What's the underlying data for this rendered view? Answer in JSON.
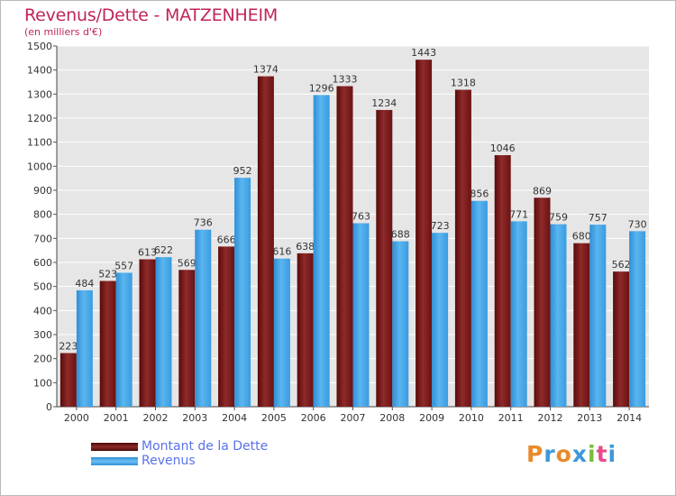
{
  "header": {
    "title": "Revenus/Dette - MATZENHEIM",
    "subtitle": "(en milliers d'€)"
  },
  "logo": {
    "text": "Proxiti",
    "colors": [
      "#e98a2b",
      "#3b98d8",
      "#e98a2b",
      "#3b98d8",
      "#7bbd3c",
      "#e84c8b",
      "#3b98d8"
    ]
  },
  "chart_data": {
    "type": "bar",
    "categories": [
      "2000",
      "2001",
      "2002",
      "2003",
      "2004",
      "2005",
      "2006",
      "2007",
      "2008",
      "2009",
      "2010",
      "2011",
      "2012",
      "2013",
      "2014"
    ],
    "series": [
      {
        "name": "Montant de la Dette",
        "color": "#7a1a1a",
        "values": [
          223,
          523,
          613,
          569,
          666,
          1374,
          638,
          1333,
          1234,
          1443,
          1318,
          1046,
          869,
          680,
          562
        ]
      },
      {
        "name": "Revenus",
        "color": "#3ea6e8",
        "values": [
          484,
          557,
          622,
          736,
          952,
          616,
          1296,
          763,
          688,
          723,
          856,
          771,
          759,
          757,
          730
        ]
      }
    ],
    "ylim": [
      0,
      1500
    ],
    "yticks": [
      0,
      100,
      200,
      300,
      400,
      500,
      600,
      700,
      800,
      900,
      1000,
      1100,
      1200,
      1300,
      1400,
      1500
    ],
    "grid": true,
    "legend_position": "bottom-left"
  }
}
